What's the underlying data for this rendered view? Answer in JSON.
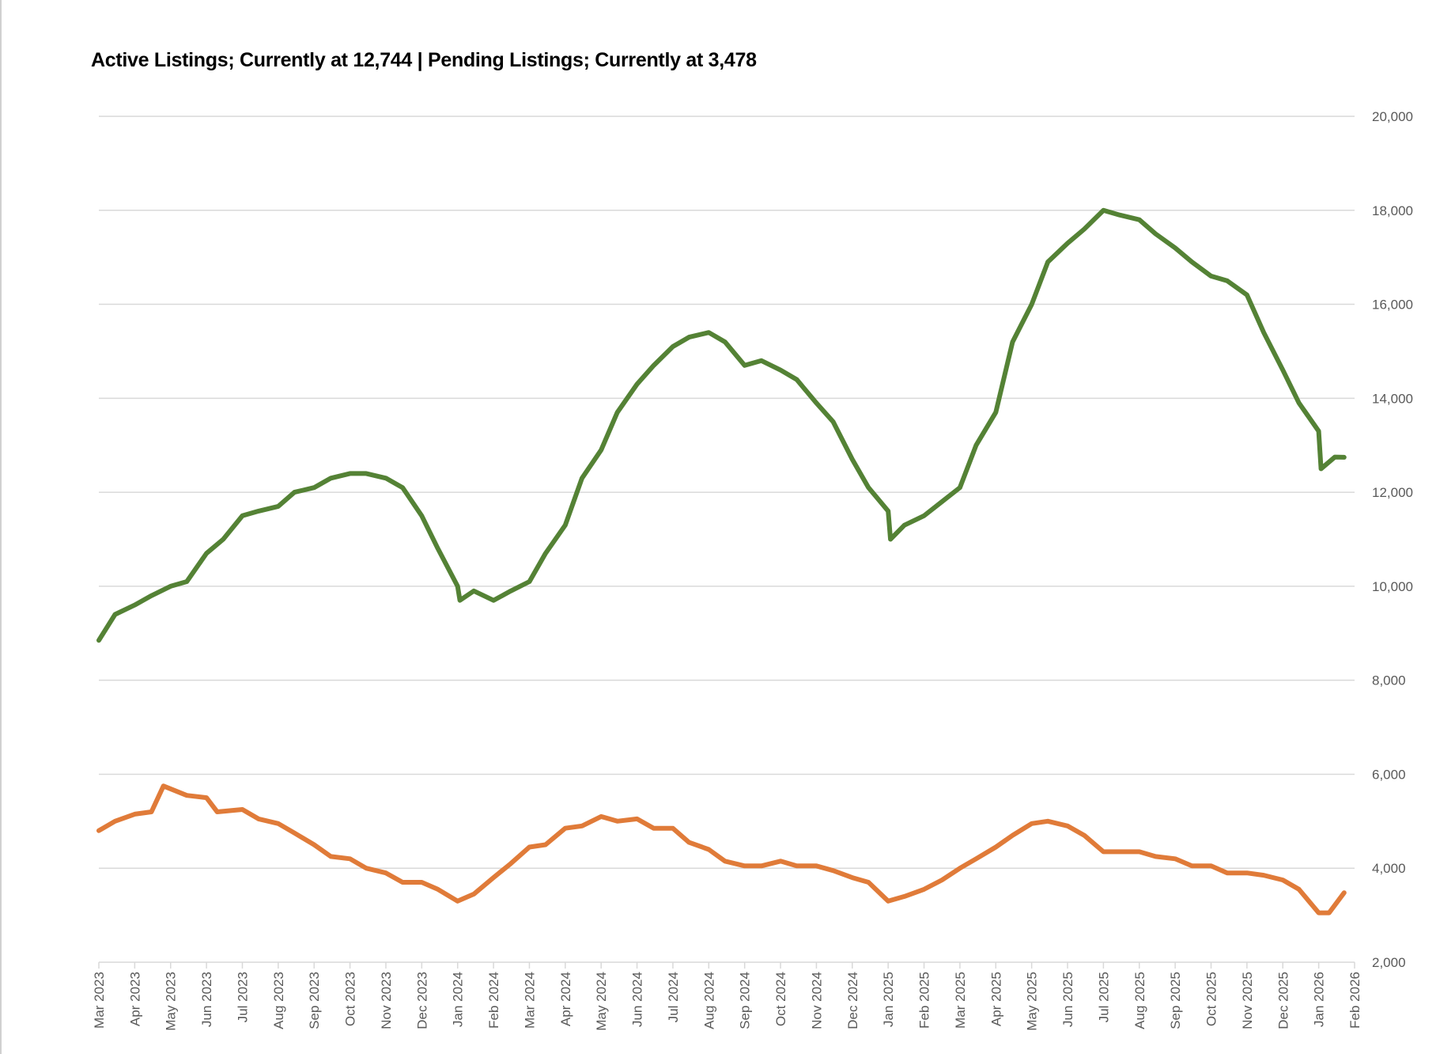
{
  "chart_data": {
    "type": "line",
    "title": "Active Listings; Currently at 12,744 | Pending Listings; Currently at 3,478",
    "xlabel": "",
    "ylabel": "",
    "ylim": [
      2000,
      20000
    ],
    "y_ticks": [
      "2,000",
      "4,000",
      "6,000",
      "8,000",
      "10,000",
      "12,000",
      "14,000",
      "16,000",
      "18,000",
      "20,000"
    ],
    "y_tick_values": [
      2000,
      4000,
      6000,
      8000,
      10000,
      12000,
      14000,
      16000,
      18000,
      20000
    ],
    "x_ticks": [
      "Mar 2023",
      "Apr 2023",
      "May 2023",
      "Jun 2023",
      "Jul 2023",
      "Aug 2023",
      "Sep 2023",
      "Oct 2023",
      "Nov 2023",
      "Dec 2023",
      "Jan 2024",
      "Feb 2024",
      "Mar 2024",
      "Apr 2024",
      "May 2024",
      "Jun 2024",
      "Jul 2024",
      "Aug 2024",
      "Sep 2024",
      "Oct 2024",
      "Nov 2024",
      "Dec 2024",
      "Jan 2025",
      "Feb 2025",
      "Mar 2025",
      "Apr 2025",
      "May 2025",
      "Jun 2025",
      "Jul 2025",
      "Aug 2025",
      "Sep 2025",
      "Oct 2025",
      "Nov 2025",
      "Dec 2025",
      "Jan 2026",
      "Feb 2026"
    ],
    "grid": true,
    "legend": "none",
    "series": [
      {
        "name": "Active Listings",
        "color": "#548235",
        "points": [
          [
            "2023-03-01",
            8850
          ],
          [
            "2023-03-15",
            9400
          ],
          [
            "2023-04-01",
            9600
          ],
          [
            "2023-04-15",
            9800
          ],
          [
            "2023-05-01",
            10000
          ],
          [
            "2023-05-15",
            10100
          ],
          [
            "2023-06-01",
            10700
          ],
          [
            "2023-06-15",
            11000
          ],
          [
            "2023-07-01",
            11500
          ],
          [
            "2023-07-15",
            11600
          ],
          [
            "2023-08-01",
            11700
          ],
          [
            "2023-08-15",
            12000
          ],
          [
            "2023-09-01",
            12100
          ],
          [
            "2023-09-15",
            12300
          ],
          [
            "2023-10-01",
            12400
          ],
          [
            "2023-10-15",
            12400
          ],
          [
            "2023-11-01",
            12300
          ],
          [
            "2023-11-15",
            12100
          ],
          [
            "2023-12-01",
            11500
          ],
          [
            "2023-12-15",
            10800
          ],
          [
            "2024-01-01",
            10000
          ],
          [
            "2024-01-03",
            9700
          ],
          [
            "2024-01-15",
            9900
          ],
          [
            "2024-02-01",
            9700
          ],
          [
            "2024-02-15",
            9900
          ],
          [
            "2024-03-01",
            10100
          ],
          [
            "2024-03-15",
            10700
          ],
          [
            "2024-04-01",
            11300
          ],
          [
            "2024-04-15",
            12300
          ],
          [
            "2024-05-01",
            12900
          ],
          [
            "2024-05-15",
            13700
          ],
          [
            "2024-06-01",
            14300
          ],
          [
            "2024-06-15",
            14700
          ],
          [
            "2024-07-01",
            15100
          ],
          [
            "2024-07-15",
            15300
          ],
          [
            "2024-08-01",
            15400
          ],
          [
            "2024-08-15",
            15200
          ],
          [
            "2024-09-01",
            14700
          ],
          [
            "2024-09-15",
            14800
          ],
          [
            "2024-10-01",
            14600
          ],
          [
            "2024-10-15",
            14400
          ],
          [
            "2024-11-01",
            13900
          ],
          [
            "2024-11-15",
            13500
          ],
          [
            "2024-12-01",
            12700
          ],
          [
            "2024-12-15",
            12100
          ],
          [
            "2025-01-01",
            11600
          ],
          [
            "2025-01-03",
            11000
          ],
          [
            "2025-01-15",
            11300
          ],
          [
            "2025-02-01",
            11500
          ],
          [
            "2025-02-15",
            11800
          ],
          [
            "2025-03-01",
            12100
          ],
          [
            "2025-03-15",
            13000
          ],
          [
            "2025-04-01",
            13700
          ],
          [
            "2025-04-15",
            15200
          ],
          [
            "2025-05-01",
            16000
          ],
          [
            "2025-05-15",
            16900
          ],
          [
            "2025-06-01",
            17300
          ],
          [
            "2025-06-15",
            17600
          ],
          [
            "2025-07-01",
            18000
          ],
          [
            "2025-07-15",
            17900
          ],
          [
            "2025-08-01",
            17800
          ],
          [
            "2025-08-15",
            17500
          ],
          [
            "2025-09-01",
            17200
          ],
          [
            "2025-09-15",
            16900
          ],
          [
            "2025-10-01",
            16600
          ],
          [
            "2025-10-15",
            16500
          ],
          [
            "2025-11-01",
            16200
          ],
          [
            "2025-11-15",
            15400
          ],
          [
            "2025-12-01",
            14600
          ],
          [
            "2025-12-15",
            13900
          ],
          [
            "2026-01-01",
            13300
          ],
          [
            "2026-01-03",
            12500
          ],
          [
            "2026-01-15",
            12750
          ],
          [
            "2026-01-23",
            12744
          ]
        ]
      },
      {
        "name": "Pending Listings",
        "color": "#E07B39",
        "points": [
          [
            "2023-03-01",
            4800
          ],
          [
            "2023-03-15",
            5000
          ],
          [
            "2023-04-01",
            5150
          ],
          [
            "2023-04-15",
            5200
          ],
          [
            "2023-04-25",
            5750
          ],
          [
            "2023-05-15",
            5550
          ],
          [
            "2023-06-01",
            5500
          ],
          [
            "2023-06-10",
            5200
          ],
          [
            "2023-07-01",
            5250
          ],
          [
            "2023-07-15",
            5050
          ],
          [
            "2023-08-01",
            4950
          ],
          [
            "2023-08-15",
            4750
          ],
          [
            "2023-09-01",
            4500
          ],
          [
            "2023-09-15",
            4250
          ],
          [
            "2023-10-01",
            4200
          ],
          [
            "2023-10-15",
            4000
          ],
          [
            "2023-11-01",
            3900
          ],
          [
            "2023-11-15",
            3700
          ],
          [
            "2023-12-01",
            3700
          ],
          [
            "2023-12-15",
            3550
          ],
          [
            "2024-01-01",
            3300
          ],
          [
            "2024-01-15",
            3450
          ],
          [
            "2024-02-01",
            3800
          ],
          [
            "2024-02-15",
            4100
          ],
          [
            "2024-03-01",
            4450
          ],
          [
            "2024-03-15",
            4500
          ],
          [
            "2024-04-01",
            4850
          ],
          [
            "2024-04-15",
            4900
          ],
          [
            "2024-05-01",
            5100
          ],
          [
            "2024-05-15",
            5000
          ],
          [
            "2024-06-01",
            5050
          ],
          [
            "2024-06-15",
            4850
          ],
          [
            "2024-07-01",
            4850
          ],
          [
            "2024-07-15",
            4550
          ],
          [
            "2024-08-01",
            4400
          ],
          [
            "2024-08-15",
            4150
          ],
          [
            "2024-09-01",
            4050
          ],
          [
            "2024-09-15",
            4050
          ],
          [
            "2024-10-01",
            4150
          ],
          [
            "2024-10-15",
            4050
          ],
          [
            "2024-11-01",
            4050
          ],
          [
            "2024-11-15",
            3950
          ],
          [
            "2024-12-01",
            3800
          ],
          [
            "2024-12-15",
            3700
          ],
          [
            "2025-01-01",
            3300
          ],
          [
            "2025-01-15",
            3400
          ],
          [
            "2025-02-01",
            3550
          ],
          [
            "2025-02-15",
            3750
          ],
          [
            "2025-03-01",
            4000
          ],
          [
            "2025-03-15",
            4200
          ],
          [
            "2025-04-01",
            4450
          ],
          [
            "2025-04-15",
            4700
          ],
          [
            "2025-05-01",
            4950
          ],
          [
            "2025-05-15",
            5000
          ],
          [
            "2025-06-01",
            4900
          ],
          [
            "2025-06-15",
            4700
          ],
          [
            "2025-07-01",
            4350
          ],
          [
            "2025-07-15",
            4350
          ],
          [
            "2025-08-01",
            4350
          ],
          [
            "2025-08-15",
            4250
          ],
          [
            "2025-09-01",
            4200
          ],
          [
            "2025-09-15",
            4050
          ],
          [
            "2025-10-01",
            4050
          ],
          [
            "2025-10-15",
            3900
          ],
          [
            "2025-11-01",
            3900
          ],
          [
            "2025-11-15",
            3850
          ],
          [
            "2025-12-01",
            3750
          ],
          [
            "2025-12-15",
            3550
          ],
          [
            "2026-01-01",
            3050
          ],
          [
            "2026-01-10",
            3050
          ],
          [
            "2026-01-23",
            3478
          ]
        ]
      }
    ]
  }
}
